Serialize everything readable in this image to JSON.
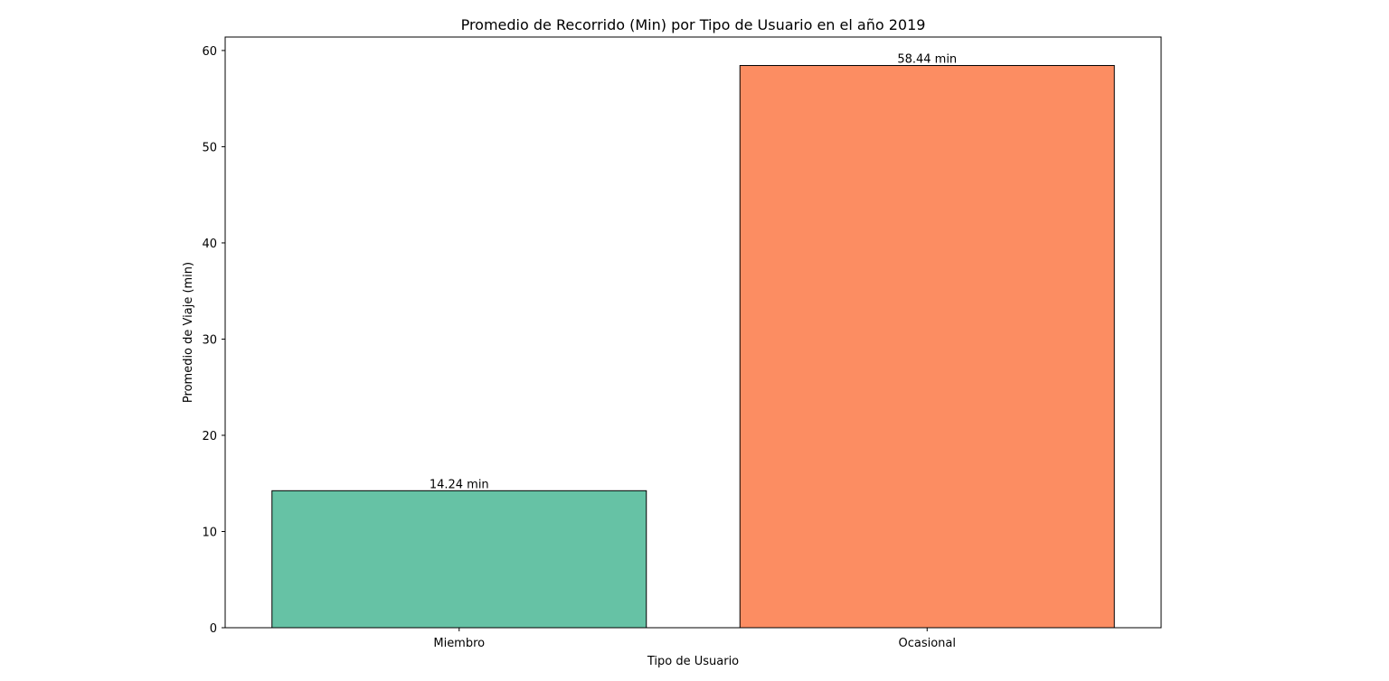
{
  "chart_data": {
    "type": "bar",
    "title": "Promedio de Recorrido (Min) por Tipo de Usuario en el año 2019",
    "xlabel": "Tipo de Usuario",
    "ylabel": "Promedio de Viaje (min)",
    "categories": [
      "Miembro",
      "Ocasional"
    ],
    "values": [
      14.24,
      58.44
    ],
    "value_labels": [
      "14.24 min",
      "58.44 min"
    ],
    "colors": [
      "#66c2a5",
      "#fc8d62"
    ],
    "edge_color": "#000000",
    "ylim": [
      0,
      61.4
    ],
    "yticks": [
      0,
      10,
      20,
      30,
      40,
      50,
      60
    ],
    "grid": false,
    "legend": "none"
  }
}
